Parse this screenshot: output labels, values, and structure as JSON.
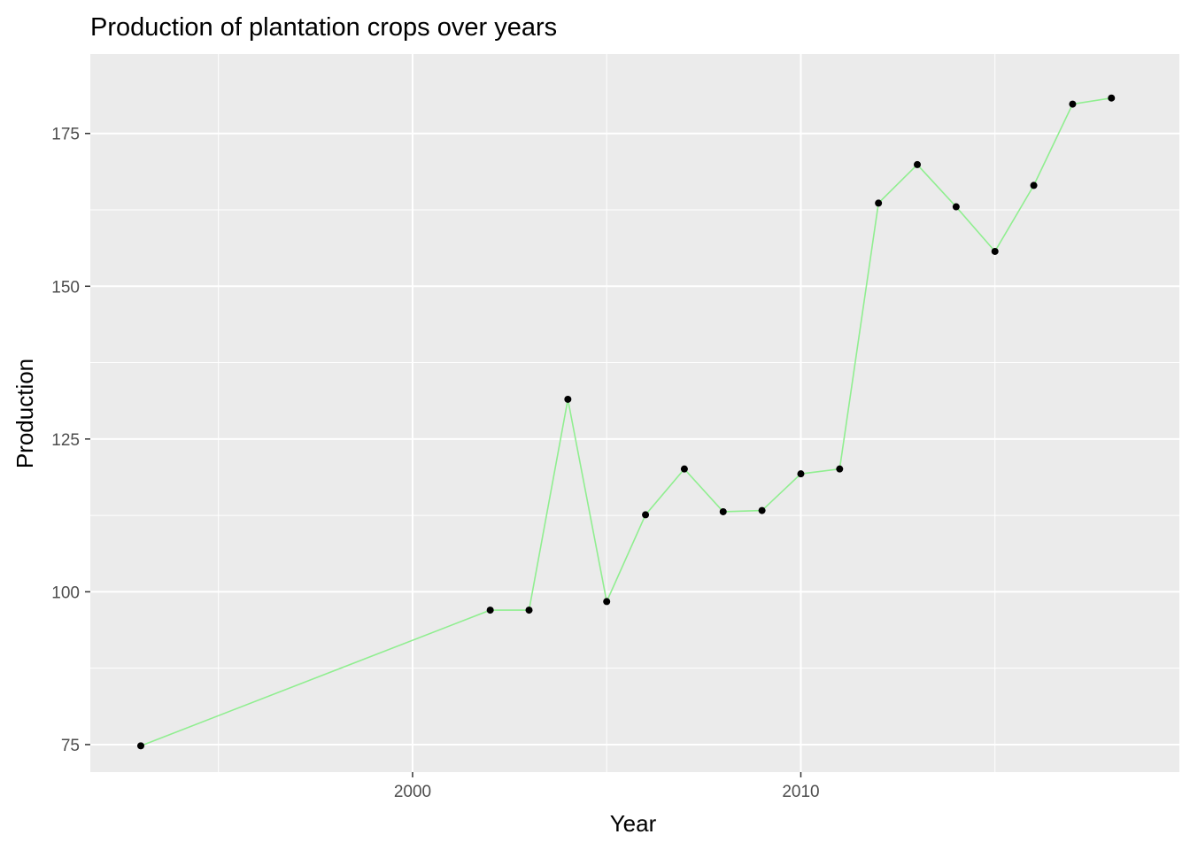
{
  "chart_data": {
    "type": "line",
    "title": "Production of plantation crops over years",
    "xlabel": "Year",
    "ylabel": "Production",
    "xlim": [
      1991.7,
      2019.75
    ],
    "ylim": [
      70.5,
      188.0
    ],
    "x_ticks": [
      2000,
      2010
    ],
    "x_minor_ticks": [
      1995,
      2005,
      2015
    ],
    "y_ticks": [
      75,
      100,
      125,
      150,
      175
    ],
    "y_minor_ticks": [
      87.5,
      112.5,
      137.5,
      162.5
    ],
    "grid": true,
    "legend": "none",
    "line_color": "#90ee90",
    "point_color": "#000000",
    "panel_color": "#ebebeb",
    "grid_color": "#ffffff",
    "series": [
      {
        "x": [
          1993,
          2002,
          2003,
          2004,
          2005,
          2006,
          2007,
          2008,
          2009,
          2010,
          2011,
          2012,
          2013,
          2014,
          2015,
          2016,
          2017,
          2018
        ],
        "values": [
          74.8,
          97.0,
          97.0,
          131.5,
          98.4,
          112.6,
          120.1,
          113.1,
          113.3,
          119.3,
          120.1,
          163.6,
          169.9,
          163.0,
          155.7,
          166.5,
          179.8,
          180.8
        ]
      }
    ]
  }
}
